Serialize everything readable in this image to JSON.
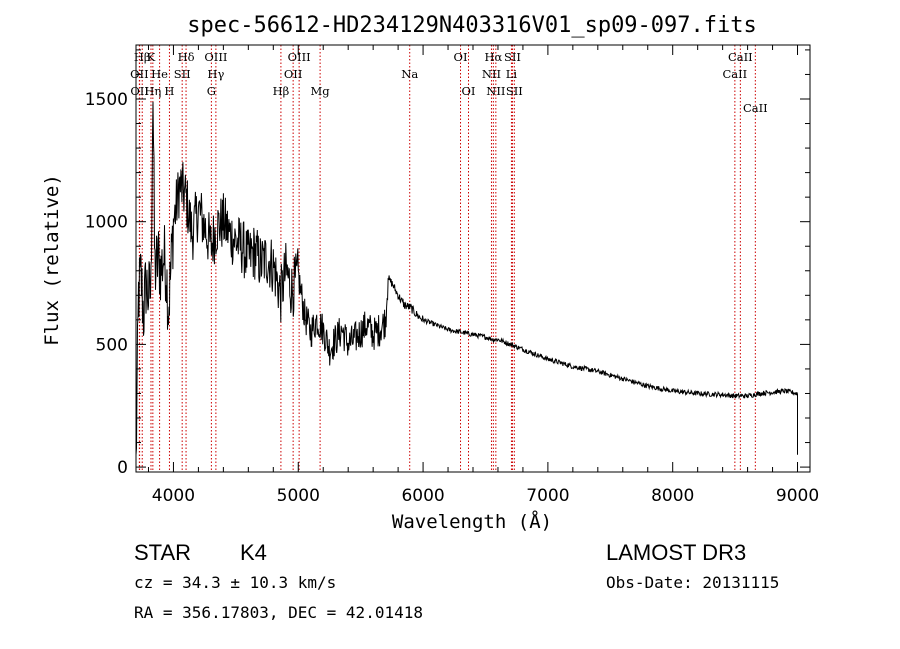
{
  "chart_data": {
    "type": "line",
    "title": "spec-56612-HD234129N403316V01_sp09-097.fits",
    "xlabel": "Wavelength (Å)",
    "ylabel": "Flux (relative)",
    "xlim": [
      3700,
      9100
    ],
    "ylim": [
      -20,
      1720
    ],
    "xticks": [
      4000,
      5000,
      6000,
      7000,
      8000,
      9000
    ],
    "yticks": [
      0,
      500,
      1000,
      1500
    ],
    "spectrum_anchors": {
      "x": [
        3700,
        3710,
        3720,
        3740,
        3760,
        3780,
        3800,
        3820,
        3835,
        3850,
        3880,
        3900,
        3920,
        3940,
        3960,
        3980,
        4000,
        4020,
        4050,
        4100,
        4150,
        4200,
        4250,
        4300,
        4350,
        4400,
        4450,
        4500,
        4550,
        4600,
        4650,
        4700,
        4750,
        4800,
        4860,
        4900,
        4950,
        5000,
        5050,
        5100,
        5150,
        5200,
        5250,
        5300,
        5350,
        5400,
        5450,
        5500,
        5550,
        5600,
        5650,
        5700,
        5720,
        5730,
        5750,
        5800,
        5850,
        5900,
        5950,
        6000,
        6100,
        6200,
        6300,
        6400,
        6500,
        6563,
        6600,
        6700,
        6800,
        6900,
        7000,
        7200,
        7400,
        7600,
        7800,
        8000,
        8200,
        8400,
        8500,
        8600,
        8700,
        8800,
        8900,
        9000,
        9000
      ],
      "y": [
        0,
        350,
        700,
        780,
        620,
        750,
        700,
        720,
        1580,
        800,
        850,
        800,
        860,
        820,
        650,
        800,
        1000,
        1050,
        1150,
        1100,
        950,
        1050,
        980,
        900,
        980,
        1000,
        950,
        920,
        900,
        850,
        880,
        830,
        850,
        820,
        700,
        800,
        720,
        780,
        620,
        550,
        600,
        560,
        480,
        520,
        560,
        500,
        520,
        550,
        580,
        540,
        560,
        600,
        780,
        760,
        750,
        700,
        660,
        650,
        620,
        600,
        580,
        560,
        550,
        540,
        530,
        520,
        520,
        500,
        480,
        460,
        440,
        410,
        390,
        360,
        330,
        310,
        300,
        295,
        290,
        290,
        300,
        305,
        310,
        300,
        50
      ]
    },
    "emission_lines": [
      {
        "name": "Hβ",
        "x": 3750
      },
      {
        "name": "K",
        "x": 3820
      },
      {
        "name": "Hδ",
        "x": 4101
      },
      {
        "name": "OIII",
        "x": 4340
      },
      {
        "name": "OIII",
        "x": 5007
      },
      {
        "name": "OI",
        "x": 6300
      },
      {
        "name": "Hα",
        "x": 6563
      },
      {
        "name": "SII",
        "x": 6716
      },
      {
        "name": "CaII",
        "x": 8542
      },
      {
        "name": "OII",
        "x": 3727
      },
      {
        "name": "He",
        "x": 3889
      },
      {
        "name": "SII",
        "x": 4070
      },
      {
        "name": "Hγ",
        "x": 4340
      },
      {
        "name": "OII",
        "x": 4959
      },
      {
        "name": "Na",
        "x": 5893
      },
      {
        "name": "NII",
        "x": 6548
      },
      {
        "name": "Li",
        "x": 6708
      },
      {
        "name": "CaII",
        "x": 8498
      },
      {
        "name": "OII",
        "x": 3729
      },
      {
        "name": "Hη",
        "x": 3835
      },
      {
        "name": "H",
        "x": 3968
      },
      {
        "name": "G",
        "x": 4304
      },
      {
        "name": "Hβ",
        "x": 4861
      },
      {
        "name": "Mg",
        "x": 5175
      },
      {
        "name": "OI",
        "x": 6364
      },
      {
        "name": "NII",
        "x": 6583
      },
      {
        "name": "SII",
        "x": 6731
      },
      {
        "name": "CaII",
        "x": 8662
      }
    ]
  },
  "info": {
    "object_type": "STAR",
    "subclass": "K4",
    "survey": "LAMOST DR3",
    "redshift": "cz = 34.3 ± 10.3 km/s",
    "obs_date": "Obs-Date: 20131115",
    "coords": "RA = 356.17803, DEC =  42.01418"
  },
  "colors": {
    "axis": "#000000",
    "spectrum": "#000000",
    "line_marker": "#cc0000"
  }
}
